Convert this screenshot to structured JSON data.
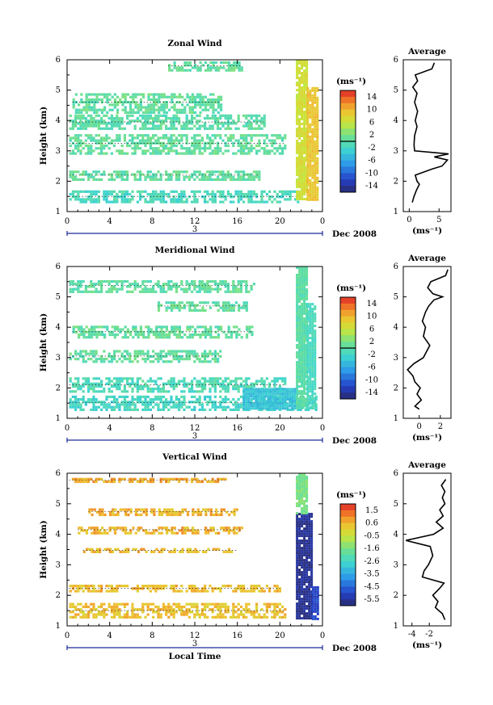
{
  "chart_data": [
    {
      "type": "heatmap",
      "title": "Zonal Wind",
      "xlabel": "",
      "ylabel": "Height (km)",
      "x_ticks": [
        "0",
        "4",
        "8",
        "12",
        "16",
        "20",
        "0"
      ],
      "y_ticks": [
        "1",
        "2",
        "3",
        "4",
        "5",
        "6"
      ],
      "xlim": [
        0,
        24
      ],
      "ylim": [
        1,
        6
      ],
      "date_marker": "3",
      "date_label": "Dec 2008",
      "colorbar": {
        "unit": "(ms⁻¹)",
        "range": [
          -16,
          16
        ],
        "ticks": [
          "14",
          "10",
          "6",
          "2",
          "-2",
          "-6",
          "-10",
          "-14"
        ],
        "zero_line": 0
      },
      "bands": [
        {
          "x": [
            0.2,
            21.8
          ],
          "y": [
            1.3,
            1.7
          ],
          "value": -1.5
        },
        {
          "x": [
            0.2,
            18.0
          ],
          "y": [
            2.05,
            2.35
          ],
          "value": 0.5
        },
        {
          "x": [
            0.2,
            20.5
          ],
          "y": [
            2.95,
            3.55
          ],
          "value": 0.5
        },
        {
          "x": [
            0.2,
            18.5
          ],
          "y": [
            3.7,
            4.2
          ],
          "value": 0.0
        },
        {
          "x": [
            0.5,
            14.5
          ],
          "y": [
            4.3,
            4.9
          ],
          "value": 0.5
        },
        {
          "x": [
            9.5,
            16.5
          ],
          "y": [
            5.65,
            5.95
          ],
          "value": 0.5
        }
      ],
      "column_burst": [
        {
          "x": [
            21.5,
            22.5
          ],
          "y": [
            1.4,
            6.0
          ],
          "value": 6.5
        },
        {
          "x": [
            22.5,
            23.5
          ],
          "y": [
            1.4,
            5.1
          ],
          "value": 9.0
        }
      ],
      "average": {
        "title": "Average",
        "xlabel": "(ms⁻¹)",
        "xlim": [
          -1,
          7
        ],
        "x_ticks": [
          "0",
          "5"
        ],
        "y": [
          1.3,
          1.5,
          1.7,
          1.9,
          2.0,
          2.2,
          2.4,
          2.5,
          2.7,
          2.8,
          2.9,
          3.0,
          3.2,
          3.5,
          3.8,
          4.0,
          4.3,
          4.6,
          4.9,
          5.1,
          5.3,
          5.5,
          5.7,
          5.9
        ],
        "x": [
          0.5,
          0.8,
          1.2,
          1.7,
          1.3,
          1.0,
          3.8,
          5.5,
          6.4,
          4.2,
          6.6,
          0.9,
          0.8,
          0.9,
          1.3,
          1.0,
          1.4,
          0.9,
          1.3,
          0.6,
          1.4,
          1.0,
          3.8,
          4.2
        ]
      }
    },
    {
      "type": "heatmap",
      "title": "Meridional Wind",
      "xlabel": "",
      "ylabel": "Height (km)",
      "x_ticks": [
        "0",
        "4",
        "8",
        "12",
        "16",
        "20",
        "0"
      ],
      "y_ticks": [
        "1",
        "2",
        "3",
        "4",
        "5",
        "6"
      ],
      "xlim": [
        0,
        24
      ],
      "ylim": [
        1,
        6
      ],
      "date_marker": "3",
      "date_label": "Dec 2008",
      "colorbar": {
        "unit": "(ms⁻¹)",
        "range": [
          -16,
          16
        ],
        "ticks": [
          "14",
          "10",
          "6",
          "2",
          "-2",
          "-6",
          "-10",
          "-14"
        ],
        "zero_line": 0
      },
      "bands": [
        {
          "x": [
            0.2,
            23.5
          ],
          "y": [
            1.3,
            1.75
          ],
          "value": -2.0
        },
        {
          "x": [
            0.2,
            20.5
          ],
          "y": [
            1.85,
            2.35
          ],
          "value": -1.0
        },
        {
          "x": [
            0.2,
            14.5
          ],
          "y": [
            2.85,
            3.25
          ],
          "value": 0.5
        },
        {
          "x": [
            0.5,
            17.5
          ],
          "y": [
            3.65,
            4.05
          ],
          "value": 0.5
        },
        {
          "x": [
            8.5,
            17.0
          ],
          "y": [
            4.55,
            4.85
          ],
          "value": 0.5
        },
        {
          "x": [
            0.2,
            17.5
          ],
          "y": [
            5.2,
            5.55
          ],
          "value": 0.5
        }
      ],
      "column_burst": [
        {
          "x": [
            21.5,
            22.5
          ],
          "y": [
            1.3,
            6.0
          ],
          "value": 0.0
        },
        {
          "x": [
            22.5,
            23.3
          ],
          "y": [
            1.3,
            4.8
          ],
          "value": -1.5
        },
        {
          "x": [
            16.5,
            21.5
          ],
          "y": [
            1.3,
            2.0
          ],
          "value": -4.0
        }
      ],
      "average": {
        "title": "Average",
        "xlabel": "(ms⁻¹)",
        "xlim": [
          -1.5,
          3
        ],
        "x_ticks": [
          "0",
          "2"
        ],
        "y": [
          1.3,
          1.4,
          1.6,
          1.8,
          2.0,
          2.2,
          2.4,
          2.6,
          2.8,
          3.0,
          3.2,
          3.4,
          3.7,
          4.0,
          4.2,
          4.5,
          4.7,
          4.9,
          5.0,
          5.1,
          5.3,
          5.5,
          5.7,
          5.9
        ],
        "x": [
          0.0,
          -0.4,
          0.2,
          -0.2,
          0.1,
          -0.4,
          -0.6,
          -1.1,
          -0.5,
          0.4,
          0.7,
          1.0,
          0.4,
          0.6,
          0.3,
          0.6,
          0.9,
          1.4,
          2.2,
          1.3,
          0.8,
          1.1,
          2.5,
          2.7
        ]
      }
    },
    {
      "type": "heatmap",
      "title": "Vertical Wind",
      "xlabel": "Local Time",
      "ylabel": "Height (km)",
      "x_ticks": [
        "0",
        "4",
        "8",
        "12",
        "16",
        "20",
        "0"
      ],
      "y_ticks": [
        "1",
        "2",
        "3",
        "4",
        "5",
        "6"
      ],
      "xlim": [
        0,
        24
      ],
      "ylim": [
        1,
        6
      ],
      "date_marker": "3",
      "date_label": "Dec 2008",
      "colorbar": {
        "unit": "(ms⁻¹)",
        "range": [
          -6.0,
          2.0
        ],
        "ticks": [
          "1.5",
          "0.6",
          "-0.5",
          "-1.6",
          "-2.6",
          "-3.5",
          "-4.5",
          "-5.5"
        ]
      },
      "bands": [
        {
          "x": [
            0.2,
            20.5
          ],
          "y": [
            1.25,
            1.75
          ],
          "value": 0.3
        },
        {
          "x": [
            0.2,
            20.0
          ],
          "y": [
            2.1,
            2.35
          ],
          "value": 0.4
        },
        {
          "x": [
            1.5,
            16.0
          ],
          "y": [
            3.4,
            3.55
          ],
          "value": 0.4
        },
        {
          "x": [
            1.0,
            16.5
          ],
          "y": [
            4.05,
            4.25
          ],
          "value": 0.5
        },
        {
          "x": [
            2.0,
            16.0
          ],
          "y": [
            4.65,
            4.85
          ],
          "value": 0.5
        },
        {
          "x": [
            0.2,
            15.0
          ],
          "y": [
            5.7,
            5.85
          ],
          "value": 0.6
        }
      ],
      "column_burst": [
        {
          "x": [
            21.5,
            23.0
          ],
          "y": [
            1.25,
            4.7
          ],
          "value": -5.6
        },
        {
          "x": [
            21.5,
            22.5
          ],
          "y": [
            4.7,
            6.0
          ],
          "value": -1.5
        },
        {
          "x": [
            23.0,
            23.6
          ],
          "y": [
            1.25,
            2.3
          ],
          "value": -5.0
        }
      ],
      "average": {
        "title": "Average",
        "xlabel": "(ms⁻¹)",
        "xlim": [
          -5,
          0.5
        ],
        "x_ticks": [
          "-4",
          "-2"
        ],
        "y": [
          1.2,
          1.4,
          1.6,
          1.8,
          2.0,
          2.2,
          2.4,
          2.6,
          2.8,
          3.0,
          3.3,
          3.6,
          3.8,
          4.0,
          4.2,
          4.4,
          4.6,
          4.8,
          5.0,
          5.2,
          5.4,
          5.6,
          5.8
        ],
        "x": [
          -0.2,
          -0.5,
          -1.3,
          -1.0,
          -1.6,
          -0.9,
          -0.3,
          -2.8,
          -2.6,
          -2.1,
          -1.6,
          -1.9,
          -4.7,
          -1.5,
          -0.4,
          -1.2,
          -0.4,
          -0.8,
          -0.2,
          -0.5,
          -0.2,
          -0.6,
          -0.1
        ]
      }
    }
  ]
}
